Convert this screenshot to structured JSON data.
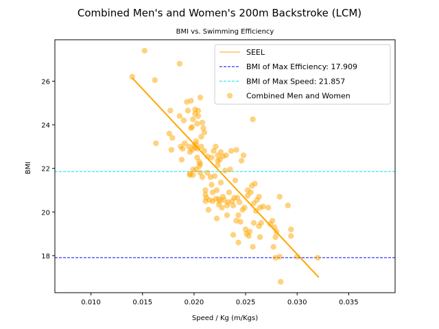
{
  "chart_data": {
    "type": "scatter",
    "title": "Combined Men's and Women's 200m Backstroke (LCM)",
    "subtitle": "BMI vs. Swimming Efficiency",
    "xlabel": "Speed / Kg (m/Kgs)",
    "ylabel": "BMI",
    "xlim": [
      0.0065,
      0.0395
    ],
    "ylim": [
      16.3,
      27.9
    ],
    "xticks": [
      0.01,
      0.015,
      0.02,
      0.025,
      0.03,
      0.035
    ],
    "xtick_labels": [
      "0.010",
      "0.015",
      "0.020",
      "0.025",
      "0.030",
      "0.035"
    ],
    "yticks": [
      18,
      20,
      22,
      24,
      26
    ],
    "ytick_labels": [
      "18",
      "20",
      "22",
      "24",
      "26"
    ],
    "grid": false,
    "legend_position": "top-right",
    "series": [
      {
        "name": "SEEL",
        "kind": "line",
        "color": "#ffa500",
        "x": [
          0.014,
          0.0321
        ],
        "y": [
          26.15,
          17.0
        ]
      },
      {
        "name": "BMI of Max Efficiency: 17.909",
        "kind": "hline",
        "style": "dashed",
        "color": "#0000ff",
        "y": 17.909
      },
      {
        "name": "BMI of Max Speed: 21.857",
        "kind": "hline",
        "style": "dashed",
        "color": "#00e5ee",
        "y": 21.857
      },
      {
        "name": "Combined Men and Women",
        "kind": "scatter",
        "color": "#ffa500",
        "points": [
          [
            0.014,
            26.2
          ],
          [
            0.0152,
            27.4
          ],
          [
            0.0162,
            26.05
          ],
          [
            0.0176,
            23.6
          ],
          [
            0.0177,
            24.65
          ],
          [
            0.0178,
            22.85
          ],
          [
            0.0179,
            23.4
          ],
          [
            0.0186,
            24.4
          ],
          [
            0.0186,
            26.8
          ],
          [
            0.0187,
            23.0
          ],
          [
            0.0188,
            22.4
          ],
          [
            0.0189,
            22.9
          ],
          [
            0.019,
            24.2
          ],
          [
            0.0191,
            23.15
          ],
          [
            0.0193,
            25.05
          ],
          [
            0.0194,
            24.65
          ],
          [
            0.0195,
            23.0
          ],
          [
            0.0196,
            22.75
          ],
          [
            0.0196,
            21.75
          ],
          [
            0.0196,
            21.7
          ],
          [
            0.0197,
            23.85
          ],
          [
            0.0197,
            25.1
          ],
          [
            0.0198,
            23.9
          ],
          [
            0.0198,
            22.85
          ],
          [
            0.0199,
            24.25
          ],
          [
            0.0199,
            21.95
          ],
          [
            0.02,
            23.05
          ],
          [
            0.0201,
            24.5
          ],
          [
            0.0201,
            24.7
          ],
          [
            0.0201,
            22.95
          ],
          [
            0.0202,
            23.25
          ],
          [
            0.0202,
            21.95
          ],
          [
            0.0202,
            23.1
          ],
          [
            0.0203,
            24.05
          ],
          [
            0.0203,
            22.5
          ],
          [
            0.0203,
            22.9
          ],
          [
            0.0204,
            24.65
          ],
          [
            0.0204,
            24.4
          ],
          [
            0.0205,
            22.3
          ],
          [
            0.0205,
            22.1
          ],
          [
            0.0206,
            25.25
          ],
          [
            0.0206,
            22.2
          ],
          [
            0.0206,
            21.8
          ],
          [
            0.0207,
            23.0
          ],
          [
            0.0207,
            23.45
          ],
          [
            0.0208,
            21.6
          ],
          [
            0.0208,
            24.1
          ],
          [
            0.0209,
            23.85
          ],
          [
            0.021,
            23.65
          ],
          [
            0.021,
            22.8
          ],
          [
            0.0211,
            21.0
          ],
          [
            0.0211,
            20.8
          ],
          [
            0.0211,
            20.5
          ],
          [
            0.0212,
            20.65
          ],
          [
            0.0213,
            21.8
          ],
          [
            0.0213,
            22.55
          ],
          [
            0.0214,
            20.1
          ],
          [
            0.0215,
            20.55
          ],
          [
            0.0216,
            21.6
          ],
          [
            0.0217,
            21.25
          ],
          [
            0.0217,
            22.5
          ],
          [
            0.0218,
            20.5
          ],
          [
            0.0218,
            20.9
          ],
          [
            0.0219,
            22.8
          ],
          [
            0.022,
            21.65
          ],
          [
            0.0221,
            23.0
          ],
          [
            0.0221,
            20.6
          ],
          [
            0.0222,
            19.7
          ],
          [
            0.0222,
            21.0
          ],
          [
            0.0223,
            22.35
          ],
          [
            0.0223,
            22.6
          ],
          [
            0.0223,
            22.15
          ],
          [
            0.0224,
            20.35
          ],
          [
            0.0224,
            20.6
          ],
          [
            0.0225,
            20.5
          ],
          [
            0.0225,
            22.4
          ],
          [
            0.0226,
            22.75
          ],
          [
            0.0226,
            21.35
          ],
          [
            0.0227,
            20.2
          ],
          [
            0.0228,
            20.7
          ],
          [
            0.0228,
            22.55
          ],
          [
            0.0229,
            20.55
          ],
          [
            0.023,
            21.9
          ],
          [
            0.0231,
            22.6
          ],
          [
            0.0232,
            20.3
          ],
          [
            0.0232,
            19.85
          ],
          [
            0.0233,
            20.45
          ],
          [
            0.0234,
            20.9
          ],
          [
            0.0235,
            21.95
          ],
          [
            0.0236,
            22.8
          ],
          [
            0.0237,
            20.5
          ],
          [
            0.0238,
            18.95
          ],
          [
            0.0238,
            20.3
          ],
          [
            0.0239,
            20.65
          ],
          [
            0.024,
            21.45
          ],
          [
            0.0241,
            22.85
          ],
          [
            0.0241,
            19.6
          ],
          [
            0.0242,
            20.65
          ],
          [
            0.0243,
            18.6
          ],
          [
            0.0243,
            19.85
          ],
          [
            0.0244,
            20.45
          ],
          [
            0.0245,
            19.55
          ],
          [
            0.0246,
            22.35
          ],
          [
            0.0247,
            20.1
          ],
          [
            0.0248,
            22.6
          ],
          [
            0.0249,
            20.2
          ],
          [
            0.025,
            19.2
          ],
          [
            0.0251,
            19.0
          ],
          [
            0.0252,
            21.0
          ],
          [
            0.0252,
            20.75
          ],
          [
            0.0253,
            18.9
          ],
          [
            0.0254,
            19.1
          ],
          [
            0.0255,
            20.9
          ],
          [
            0.0256,
            21.2
          ],
          [
            0.0257,
            18.4
          ],
          [
            0.0257,
            24.25
          ],
          [
            0.0258,
            20.4
          ],
          [
            0.0258,
            19.5
          ],
          [
            0.0259,
            21.3
          ],
          [
            0.026,
            20.05
          ],
          [
            0.0261,
            20.55
          ],
          [
            0.0263,
            20.7
          ],
          [
            0.0263,
            19.35
          ],
          [
            0.0264,
            20.2
          ],
          [
            0.0264,
            18.85
          ],
          [
            0.0265,
            19.5
          ],
          [
            0.0267,
            20.25
          ],
          [
            0.0272,
            20.2
          ],
          [
            0.0274,
            19.45
          ],
          [
            0.0276,
            19.6
          ],
          [
            0.0277,
            18.4
          ],
          [
            0.0278,
            19.3
          ],
          [
            0.0279,
            17.9
          ],
          [
            0.0279,
            18.85
          ],
          [
            0.028,
            19.1
          ],
          [
            0.0283,
            20.7
          ],
          [
            0.0283,
            17.95
          ],
          [
            0.0284,
            16.8
          ],
          [
            0.0291,
            20.3
          ],
          [
            0.0294,
            19.2
          ],
          [
            0.0294,
            18.9
          ],
          [
            0.03,
            17.95
          ],
          [
            0.032,
            17.9
          ],
          [
            0.0163,
            23.15
          ],
          [
            0.0199,
            21.7
          ]
        ]
      }
    ]
  }
}
